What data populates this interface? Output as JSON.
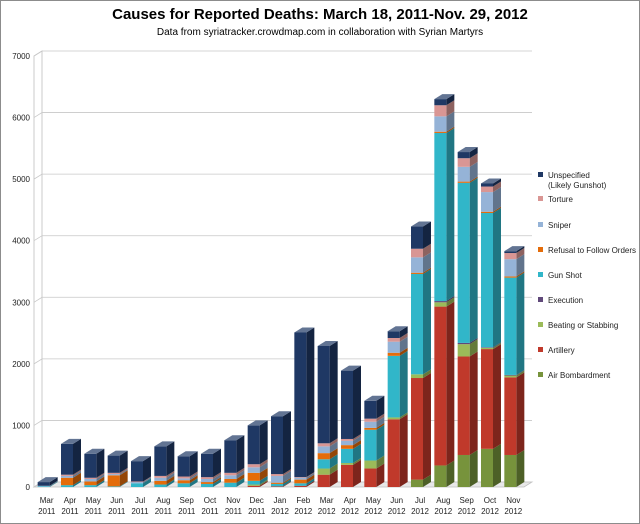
{
  "chart_data": {
    "type": "bar",
    "stacked": true,
    "style": "3d-column",
    "title": "Causes for Reported Deaths: March 18, 2011-Nov. 29, 2012",
    "subtitle": "Data from syriatracker.crowdmap.com in collaboration with Syrian Martyrs",
    "xlabel": "",
    "ylabel": "",
    "ylim": [
      0,
      7000
    ],
    "yticks": [
      0,
      1000,
      2000,
      3000,
      4000,
      5000,
      6000,
      7000
    ],
    "grid": true,
    "legend_position": "right",
    "categories": [
      {
        "month": "Mar",
        "year": "2011"
      },
      {
        "month": "Apr",
        "year": "2011"
      },
      {
        "month": "May",
        "year": "2011"
      },
      {
        "month": "Jun",
        "year": "2011"
      },
      {
        "month": "Jul",
        "year": "2011"
      },
      {
        "month": "Aug",
        "year": "2011"
      },
      {
        "month": "Sep",
        "year": "2011"
      },
      {
        "month": "Oct",
        "year": "2011"
      },
      {
        "month": "Nov",
        "year": "2011"
      },
      {
        "month": "Dec",
        "year": "2011"
      },
      {
        "month": "Jan",
        "year": "2012"
      },
      {
        "month": "Feb",
        "year": "2012"
      },
      {
        "month": "Mar",
        "year": "2012"
      },
      {
        "month": "Apr",
        "year": "2012"
      },
      {
        "month": "May",
        "year": "2012"
      },
      {
        "month": "Jun",
        "year": "2012"
      },
      {
        "month": "Jul",
        "year": "2012"
      },
      {
        "month": "Aug",
        "year": "2012"
      },
      {
        "month": "Sep",
        "year": "2012"
      },
      {
        "month": "Oct",
        "year": "2012"
      },
      {
        "month": "Nov",
        "year": "2012"
      }
    ],
    "series": [
      {
        "name": "Air Bombardment",
        "color": "#77933c",
        "values": [
          0,
          0,
          0,
          0,
          0,
          0,
          0,
          0,
          0,
          0,
          0,
          0,
          0,
          0,
          0,
          0,
          120,
          350,
          520,
          620,
          520
        ]
      },
      {
        "name": "Artillery",
        "color": "#c0392b",
        "values": [
          0,
          0,
          0,
          0,
          0,
          0,
          0,
          0,
          0,
          20,
          10,
          20,
          200,
          360,
          300,
          1100,
          1650,
          2580,
          1600,
          1620,
          1260
        ]
      },
      {
        "name": "Beating or Stabbing",
        "color": "#9bbb59",
        "values": [
          0,
          0,
          0,
          0,
          0,
          0,
          0,
          0,
          0,
          20,
          0,
          0,
          100,
          30,
          130,
          30,
          60,
          70,
          200,
          20,
          30
        ]
      },
      {
        "name": "Execution",
        "color": "#60497a",
        "values": [
          0,
          0,
          0,
          0,
          0,
          0,
          0,
          0,
          0,
          0,
          0,
          0,
          0,
          0,
          0,
          0,
          0,
          20,
          20,
          10,
          10
        ]
      },
      {
        "name": "Gun Shot",
        "color": "#31b6c9",
        "values": [
          10,
          30,
          30,
          10,
          60,
          40,
          60,
          50,
          70,
          60,
          40,
          40,
          150,
          230,
          500,
          1000,
          1630,
          2730,
          2600,
          2180,
          1580
        ]
      },
      {
        "name": "Refusal to Follow Orders",
        "color": "#e46c0a",
        "values": [
          0,
          120,
          60,
          180,
          0,
          60,
          50,
          30,
          60,
          130,
          20,
          60,
          100,
          60,
          30,
          50,
          20,
          20,
          20,
          20,
          20
        ]
      },
      {
        "name": "Sniper",
        "color": "#95b3d7",
        "values": [
          10,
          30,
          40,
          20,
          20,
          50,
          30,
          50,
          60,
          90,
          110,
          30,
          110,
          70,
          100,
          180,
          250,
          250,
          240,
          320,
          280
        ]
      },
      {
        "name": "Torture",
        "color": "#d99694",
        "values": [
          0,
          20,
          20,
          20,
          10,
          30,
          30,
          30,
          40,
          50,
          30,
          10,
          50,
          30,
          50,
          60,
          140,
          180,
          140,
          90,
          100
        ]
      },
      {
        "name": "Unspecified (Likely Gunshot)",
        "legend_lines": [
          "Unspecified",
          "(Likely Gunshot)"
        ],
        "color": "#1f3864",
        "values": [
          60,
          500,
          390,
          280,
          330,
          480,
          330,
          380,
          530,
          630,
          940,
          2350,
          1580,
          1110,
          290,
          110,
          360,
          100,
          100,
          50,
          30
        ]
      }
    ]
  }
}
